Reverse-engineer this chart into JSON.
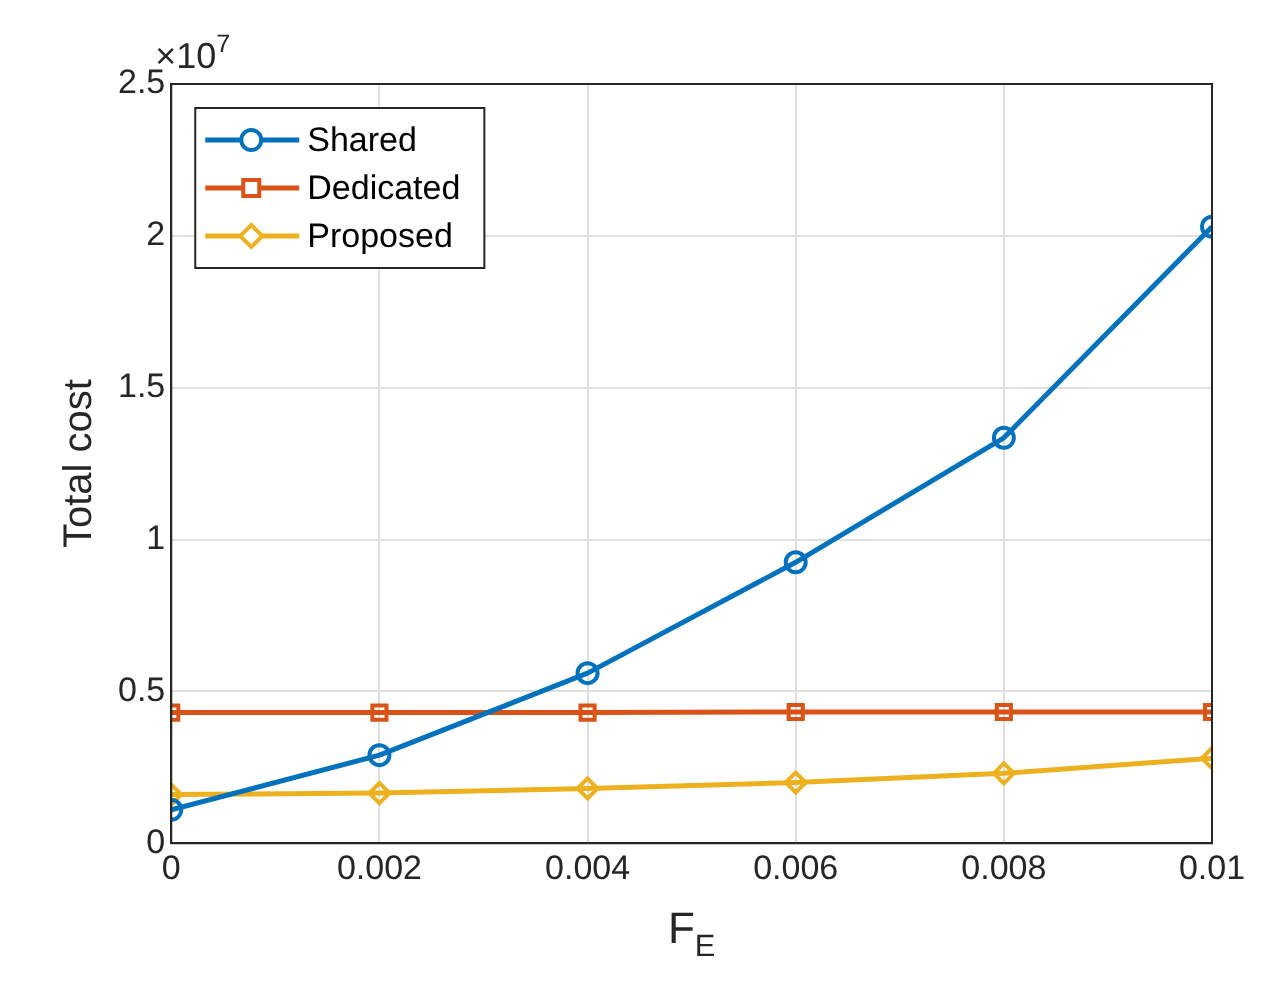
{
  "chart_data": {
    "type": "line",
    "xlabel": "F$_{E}$",
    "ylabel": "Total cost",
    "annotations": [
      "×10$^{7}$"
    ],
    "x": [
      0,
      0.002,
      0.004,
      0.006,
      0.008,
      0.01
    ],
    "series": [
      {
        "name": "Shared",
        "color": "#0072bd",
        "marker": "circle",
        "values": [
          0.11,
          0.29,
          0.56,
          0.925,
          1.335,
          2.03
        ]
      },
      {
        "name": "Dedicated",
        "color": "#d95319",
        "marker": "square",
        "values": [
          0.43,
          0.43,
          0.43,
          0.432,
          0.432,
          0.432
        ]
      },
      {
        "name": "Proposed",
        "color": "#edb120",
        "marker": "diamond",
        "values": [
          0.16,
          0.165,
          0.18,
          0.2,
          0.23,
          0.28
        ]
      }
    ],
    "xlim": [
      0,
      0.01
    ],
    "xticks": [
      0,
      0.002,
      0.004,
      0.006,
      0.008,
      0.01
    ],
    "ylim": [
      0,
      2.5
    ],
    "yticks": [
      0,
      0.5,
      1,
      1.5,
      2,
      2.5
    ],
    "grid": true,
    "legend": "top left",
    "line_style": "solid"
  }
}
